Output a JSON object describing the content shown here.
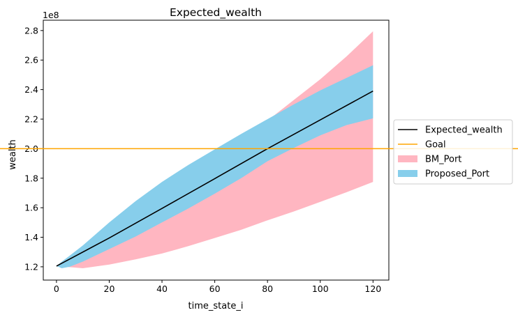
{
  "chart_data": {
    "type": "area",
    "title": "Expected_wealth",
    "xlabel": "time_state_i",
    "ylabel": "wealth",
    "y_scale_label": "1e8",
    "xlim": [
      -5,
      126
    ],
    "ylim": [
      1.11,
      2.87
    ],
    "x_ticks": [
      0,
      20,
      40,
      60,
      80,
      100,
      120
    ],
    "y_ticks": [
      1.2,
      1.4,
      1.6,
      1.8,
      2.0,
      2.2,
      2.4,
      2.6,
      2.8
    ],
    "y_tick_labels": [
      "1.2",
      "1.4",
      "1.6",
      "1.8",
      "2.0",
      "2.2",
      "2.4",
      "2.6",
      "2.8"
    ],
    "x_tick_labels": [
      "0",
      "20",
      "40",
      "60",
      "80",
      "100",
      "120"
    ],
    "legend_position": "outside-right",
    "grid": false,
    "goal": {
      "name": "Goal",
      "value": 2.0,
      "color": "#ffa500"
    },
    "series": [
      {
        "name": "Expected_wealth",
        "kind": "line",
        "color": "#000000",
        "x": [
          0,
          20,
          40,
          60,
          80,
          100,
          120
        ],
        "values": [
          1.205,
          1.395,
          1.595,
          1.797,
          2.0,
          2.195,
          2.39
        ]
      },
      {
        "name": "BM_Port",
        "kind": "band",
        "color": "#ffb6c1",
        "x": [
          0,
          10,
          20,
          30,
          40,
          50,
          60,
          70,
          80,
          90,
          100,
          110,
          120
        ],
        "lower": [
          1.205,
          1.19,
          1.215,
          1.25,
          1.29,
          1.34,
          1.395,
          1.45,
          1.515,
          1.575,
          1.64,
          1.705,
          1.775
        ],
        "upper": [
          1.205,
          1.32,
          1.45,
          1.57,
          1.7,
          1.82,
          1.94,
          2.065,
          2.19,
          2.33,
          2.47,
          2.625,
          2.795
        ]
      },
      {
        "name": "Proposed_Port",
        "kind": "band",
        "color": "#87ceeb",
        "x": [
          0,
          2,
          5,
          10,
          20,
          30,
          40,
          50,
          60,
          70,
          80,
          90,
          100,
          110,
          120
        ],
        "lower": [
          1.205,
          1.19,
          1.2,
          1.235,
          1.32,
          1.405,
          1.5,
          1.595,
          1.695,
          1.8,
          1.915,
          2.005,
          2.09,
          2.16,
          2.205
        ],
        "upper": [
          1.205,
          1.235,
          1.275,
          1.345,
          1.5,
          1.645,
          1.775,
          1.89,
          1.995,
          2.1,
          2.2,
          2.3,
          2.395,
          2.48,
          2.565
        ]
      }
    ]
  }
}
